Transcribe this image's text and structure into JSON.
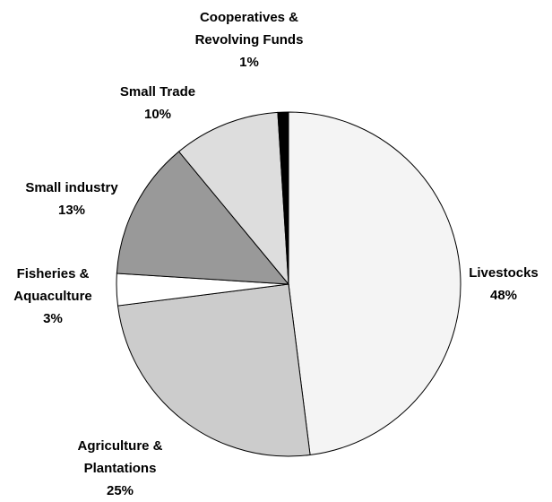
{
  "chart_data": {
    "type": "pie",
    "categories": [
      "Livestocks",
      "Agriculture & Plantations",
      "Fisheries & Aquaculture",
      "Small industry",
      "Small Trade",
      "Cooperatives & Revolving Funds"
    ],
    "values": [
      48,
      25,
      3,
      13,
      10,
      1
    ],
    "value_labels": [
      "48%",
      "25%",
      "3%",
      "13%",
      "10%",
      "1%"
    ],
    "colors": [
      "#f4f4f4",
      "#cccccc",
      "#ffffff",
      "#999999",
      "#dddddd",
      "#000000"
    ]
  }
}
